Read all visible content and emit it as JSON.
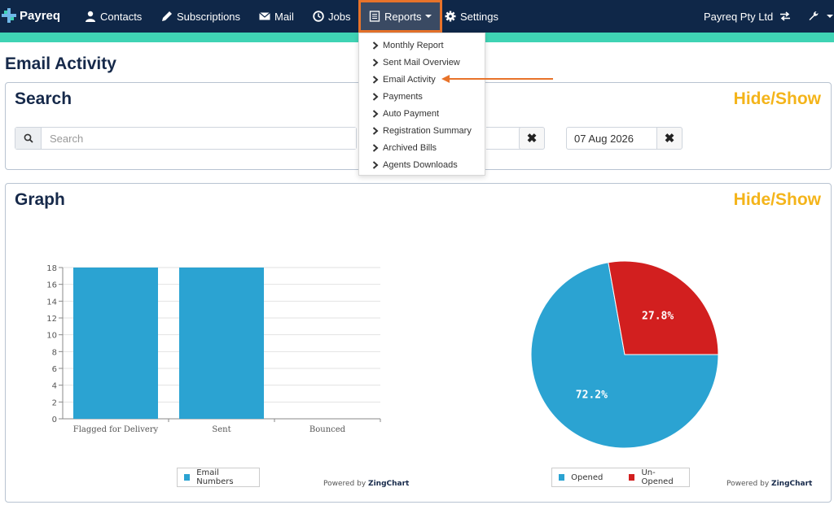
{
  "app": {
    "name": "Payreq"
  },
  "nav": {
    "contacts": "Contacts",
    "subscriptions": "Subscriptions",
    "mail": "Mail",
    "jobs": "Jobs",
    "reports": "Reports",
    "settings": "Settings",
    "company": "Payreq Pty Ltd"
  },
  "reports_menu": [
    "Monthly Report",
    "Sent Mail Overview",
    "Email Activity",
    "Payments",
    "Auto Payment",
    "Registration Summary",
    "Archived Bills",
    "Agents Downloads"
  ],
  "page": {
    "title": "Email Activity"
  },
  "search_panel": {
    "title": "Search",
    "hide_show": "Hide/Show",
    "search_placeholder": "Search",
    "date_value": "07 Aug 2026"
  },
  "graph_panel": {
    "title": "Graph",
    "hide_show": "Hide/Show"
  },
  "powered_by": {
    "prefix": "Powered by",
    "brand": "ZingChart"
  },
  "colors": {
    "bar": "#2ba3d2",
    "opened": "#2ba3d2",
    "unopened": "#d21f1f",
    "hide_show": "#f4b41a",
    "nav": "#0f2748",
    "accent": "#3fd3b4"
  },
  "chart_data": [
    {
      "type": "bar",
      "categories": [
        "Flagged for Delivery",
        "Sent",
        "Bounced"
      ],
      "series": [
        {
          "name": "Email Numbers",
          "values": [
            18,
            18,
            0
          ]
        }
      ],
      "ylim": [
        0,
        18
      ],
      "yticks": [
        0,
        2,
        4,
        6,
        8,
        10,
        12,
        14,
        16,
        18
      ],
      "legend": "bottom"
    },
    {
      "type": "pie",
      "labels": [
        "Opened",
        "Un-Opened"
      ],
      "values": [
        72.2,
        27.8
      ],
      "value_labels": [
        "72.2%",
        "27.8%"
      ],
      "legend": "bottom"
    }
  ]
}
